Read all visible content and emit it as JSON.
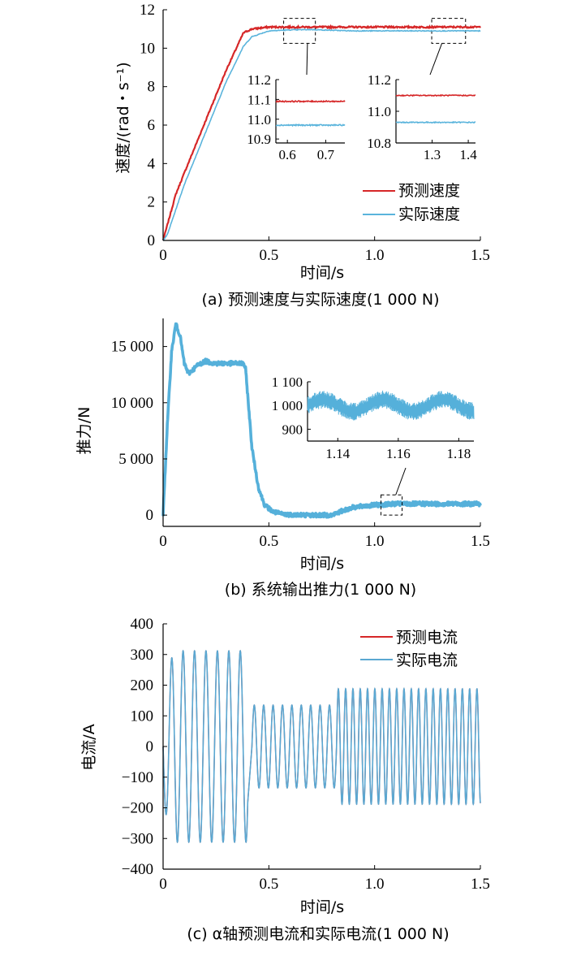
{
  "colors": {
    "predicted": "#d62728",
    "actual": "#5ab4dc",
    "thrust": "#55b0da",
    "current_actual": "#5aa8d2",
    "current_predicted": "#d62728"
  },
  "chart_data": [
    {
      "id": "a",
      "type": "line",
      "caption": "(a)  预测速度与实际速度(1 000 N)",
      "xlabel": "时间/s",
      "ylabel": "速度/(rad・s⁻¹)",
      "xlim": [
        0,
        1.5
      ],
      "ylim": [
        0,
        12
      ],
      "xticks": [
        "0",
        "0.5",
        "1.0",
        "1.5"
      ],
      "xtick_values": [
        0,
        0.5,
        1.0,
        1.5
      ],
      "yticks": [
        "0",
        "2",
        "4",
        "6",
        "8",
        "10",
        "12"
      ],
      "ytick_values": [
        0,
        2,
        4,
        6,
        8,
        10,
        12
      ],
      "legend_position": "lower-right",
      "series": [
        {
          "name": "预测速度",
          "color": "#d62728",
          "x": [
            0,
            0.02,
            0.06,
            0.1,
            0.2,
            0.3,
            0.38,
            0.42,
            0.5,
            0.6,
            0.8,
            1.0,
            1.2,
            1.5
          ],
          "y": [
            0,
            0.8,
            2.4,
            3.5,
            6.2,
            8.9,
            10.8,
            11.0,
            11.1,
            11.1,
            11.1,
            11.1,
            11.1,
            11.1
          ]
        },
        {
          "name": "实际速度",
          "color": "#5ab4dc",
          "x": [
            0,
            0.02,
            0.06,
            0.1,
            0.2,
            0.3,
            0.38,
            0.42,
            0.5,
            0.6,
            0.7,
            0.8,
            0.9,
            1.0,
            1.2,
            1.5
          ],
          "y": [
            0,
            0.3,
            1.6,
            2.9,
            5.6,
            8.3,
            10.1,
            10.6,
            10.9,
            10.95,
            10.97,
            10.93,
            10.9,
            10.9,
            10.9,
            10.9
          ]
        }
      ],
      "insets": [
        {
          "xlim": [
            0.57,
            0.75
          ],
          "ylim": [
            10.88,
            11.2
          ],
          "xticks": [
            "0.6",
            "0.7"
          ],
          "xtick_values": [
            0.6,
            0.7
          ],
          "yticks": [
            "11.2",
            "11.1",
            "11.0",
            "10.9"
          ],
          "ytick_values": [
            11.2,
            11.1,
            11.0,
            10.9
          ],
          "zoom_x": [
            0.57,
            0.72
          ],
          "zoom_y": [
            10.25,
            11.55
          ],
          "series": [
            {
              "color": "#d62728",
              "y": 11.09
            },
            {
              "color": "#5ab4dc",
              "y": 10.97
            }
          ]
        },
        {
          "xlim": [
            1.2,
            1.42
          ],
          "ylim": [
            10.8,
            11.2
          ],
          "xticks": [
            "1.3",
            "1.4"
          ],
          "xtick_values": [
            1.3,
            1.4
          ],
          "yticks": [
            "11.2",
            "11.0",
            "10.8"
          ],
          "ytick_values": [
            11.2,
            11.0,
            10.8
          ],
          "zoom_x": [
            1.27,
            1.43
          ],
          "zoom_y": [
            10.25,
            11.55
          ],
          "series": [
            {
              "color": "#d62728",
              "y": 11.1
            },
            {
              "color": "#5ab4dc",
              "y": 10.93
            }
          ]
        }
      ]
    },
    {
      "id": "b",
      "type": "line",
      "caption": "(b)  系统输出推力(1 000 N)",
      "xlabel": "时间/s",
      "ylabel": "推力/N",
      "xlim": [
        0,
        1.5
      ],
      "ylim": [
        -1000,
        17500
      ],
      "xticks": [
        "0",
        "0.5",
        "1.0",
        "1.5"
      ],
      "xtick_values": [
        0,
        0.5,
        1.0,
        1.5
      ],
      "yticks": [
        "0",
        "5 000",
        "10 000",
        "15 000"
      ],
      "ytick_values": [
        0,
        5000,
        10000,
        15000
      ],
      "series": [
        {
          "name": "",
          "color": "#55b0da",
          "x": [
            0,
            0.02,
            0.04,
            0.06,
            0.08,
            0.1,
            0.12,
            0.14,
            0.16,
            0.18,
            0.2,
            0.24,
            0.28,
            0.32,
            0.36,
            0.38,
            0.39,
            0.42,
            0.45,
            0.48,
            0.52,
            0.56,
            0.6,
            0.7,
            0.8,
            0.85,
            0.9,
            1.0,
            1.1,
            1.2,
            1.5
          ],
          "y": [
            0,
            8000,
            14500,
            17000,
            16000,
            13500,
            12600,
            12900,
            13300,
            13500,
            13700,
            13500,
            13500,
            13500,
            13500,
            13500,
            13000,
            6000,
            2500,
            900,
            300,
            100,
            50,
            0,
            0,
            400,
            700,
            900,
            1000,
            1000,
            1000
          ]
        }
      ],
      "insets": [
        {
          "xlim": [
            1.13,
            1.185
          ],
          "ylim": [
            850,
            1100
          ],
          "xticks": [
            "1.14",
            "1.16",
            "1.18"
          ],
          "xtick_values": [
            1.14,
            1.16,
            1.18
          ],
          "yticks": [
            "1 100",
            "1 000",
            "900"
          ],
          "ytick_values": [
            1100,
            1000,
            900
          ],
          "zoom_x": [
            1.03,
            1.13
          ],
          "zoom_y": [
            0,
            1800
          ]
        }
      ]
    },
    {
      "id": "c",
      "type": "line",
      "caption": "(c)  α轴预测电流和实际电流(1 000 N)",
      "xlabel": "时间/s",
      "ylabel": "电流/A",
      "xlim": [
        0,
        1.5
      ],
      "ylim": [
        -400,
        400
      ],
      "xticks": [
        "0",
        "0.5",
        "1.0",
        "1.5"
      ],
      "xtick_values": [
        0,
        0.5,
        1.0,
        1.5
      ],
      "yticks": [
        "400",
        "300",
        "200",
        "100",
        "0",
        "−100",
        "−200",
        "−300",
        "−400"
      ],
      "ytick_values": [
        400,
        300,
        200,
        100,
        0,
        -100,
        -200,
        -300,
        -400
      ],
      "legend_position": "top-right",
      "series": [
        {
          "name": "预测电流",
          "color": "#d62728"
        },
        {
          "name": "实际电流",
          "color": "#5aa8d2"
        }
      ],
      "segments": [
        {
          "t_start": 0,
          "t_end": 0.4,
          "amplitude": 312,
          "frequency_hz": 18.5
        },
        {
          "t_start": 0.42,
          "t_end": 0.82,
          "amplitude": 135,
          "frequency_hz": 22.5
        },
        {
          "t_start": 0.82,
          "t_end": 1.5,
          "amplitude": 188,
          "frequency_hz": 29
        }
      ]
    }
  ]
}
